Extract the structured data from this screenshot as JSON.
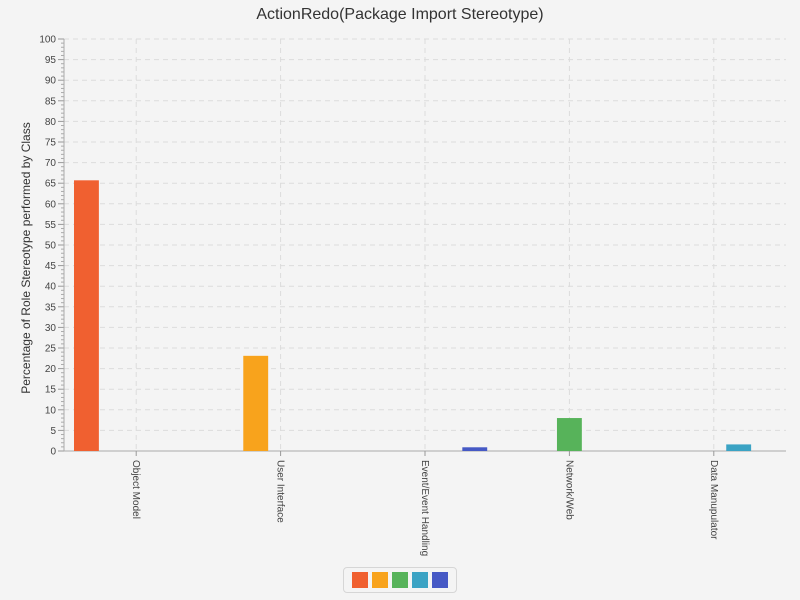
{
  "chart_data": {
    "type": "bar",
    "title": "ActionRedo(Package Import Stereotype)",
    "ylabel": "Percentage of Role Stereotype performed by Class",
    "xlabel": "",
    "ylim": [
      0,
      100
    ],
    "y_major_step": 5,
    "grid": true,
    "categories": [
      "Object Model",
      "User Interface",
      "Event/Event Handling",
      "Network/Web",
      "Data Manupulator"
    ],
    "series": [
      {
        "color": "#f06030",
        "values": [
          65.7,
          0,
          0,
          0,
          0
        ]
      },
      {
        "color": "#f8a31c",
        "values": [
          0,
          23.1,
          0,
          0,
          0
        ]
      },
      {
        "color": "#57b35a",
        "values": [
          0,
          0,
          0,
          8.0,
          0
        ]
      },
      {
        "color": "#3ba3c4",
        "values": [
          0,
          0,
          0,
          0,
          1.6
        ]
      },
      {
        "color": "#4659c5",
        "values": [
          0,
          0,
          0.9,
          0,
          0
        ]
      }
    ],
    "legend_position": "bottom-center"
  }
}
